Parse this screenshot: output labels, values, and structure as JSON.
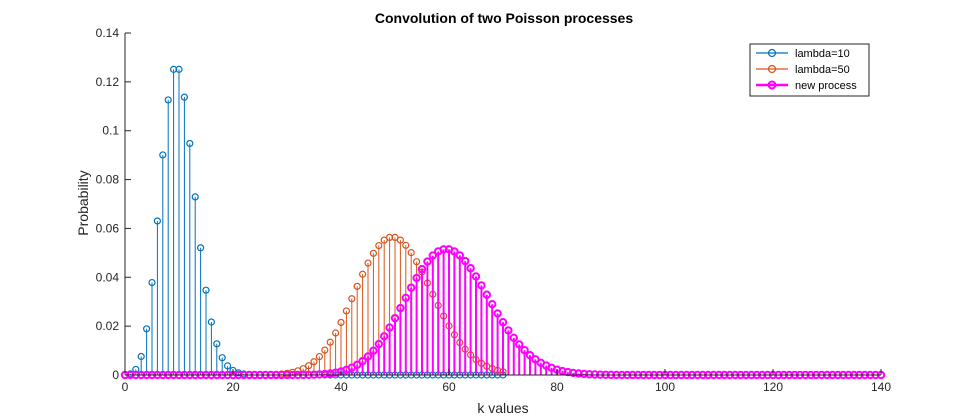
{
  "chart_data": {
    "type": "stem",
    "title": "Convolution of two Poisson processes",
    "xlabel": "k values",
    "ylabel": "Probability",
    "xlim": [
      0,
      140
    ],
    "ylim": [
      0,
      0.14
    ],
    "xticks": [
      0,
      20,
      40,
      60,
      80,
      100,
      120,
      140
    ],
    "yticks": [
      0,
      0.02,
      0.04,
      0.06,
      0.08,
      0.1,
      0.12,
      0.14
    ],
    "ytick_labels": [
      "0",
      "0.02",
      "0.04",
      "0.06",
      "0.08",
      "0.1",
      "0.12",
      "0.14"
    ],
    "grid": false,
    "legend_position": "top-right",
    "series": [
      {
        "name": "lambda=10",
        "color": "#0072BD",
        "distribution": "poisson",
        "lambda": 10,
        "k_min": 0,
        "k_max": 70,
        "marker": "open-circle",
        "bold": false
      },
      {
        "name": "lambda=50",
        "color": "#D95319",
        "distribution": "poisson",
        "lambda": 50,
        "k_min": 0,
        "k_max": 70,
        "marker": "open-circle",
        "bold": false
      },
      {
        "name": "new process",
        "color": "#FF00FF",
        "distribution": "poisson",
        "lambda": 60,
        "k_min": 0,
        "k_max": 140,
        "marker": "open-circle",
        "bold": true
      }
    ]
  }
}
